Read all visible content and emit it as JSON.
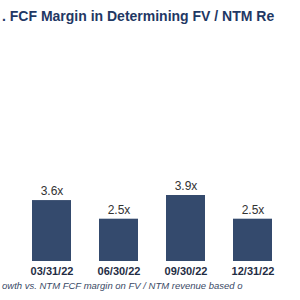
{
  "chart_data": {
    "type": "bar",
    "title": ". FCF Margin in Determining FV / NTM Re",
    "caption": "owth vs. NTM FCF margin on FV / NTM revenue based o",
    "categories": [
      "03/31/22",
      "06/30/22",
      "09/30/22",
      "12/31/22"
    ],
    "values": [
      3.6,
      2.5,
      3.9,
      2.5
    ],
    "value_labels": [
      "3.6x",
      "2.5x",
      "3.9x",
      "2.5x"
    ],
    "color": "#344a6d",
    "data_labels": true,
    "tick_labels": "x",
    "grid": false
  }
}
